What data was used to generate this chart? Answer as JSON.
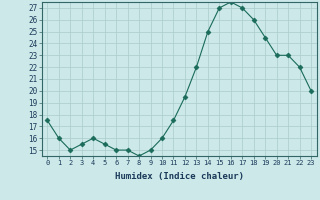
{
  "x": [
    0,
    1,
    2,
    3,
    4,
    5,
    6,
    7,
    8,
    9,
    10,
    11,
    12,
    13,
    14,
    15,
    16,
    17,
    18,
    19,
    20,
    21,
    22,
    23
  ],
  "y": [
    17.5,
    16.0,
    15.0,
    15.5,
    16.0,
    15.5,
    15.0,
    15.0,
    14.5,
    15.0,
    16.0,
    17.5,
    19.5,
    22.0,
    25.0,
    27.0,
    27.5,
    27.0,
    26.0,
    24.5,
    23.0,
    23.0,
    22.0,
    20.0
  ],
  "line_color": "#1a6b5a",
  "marker": "D",
  "marker_size": 2.5,
  "bg_color": "#cce8e8",
  "grid_color": "#aacccc",
  "xlabel": "Humidex (Indice chaleur)",
  "ylabel_ticks": [
    15,
    16,
    17,
    18,
    19,
    20,
    21,
    22,
    23,
    24,
    25,
    26,
    27
  ],
  "xlim": [
    -0.5,
    23.5
  ],
  "ylim": [
    14.5,
    27.5
  ]
}
